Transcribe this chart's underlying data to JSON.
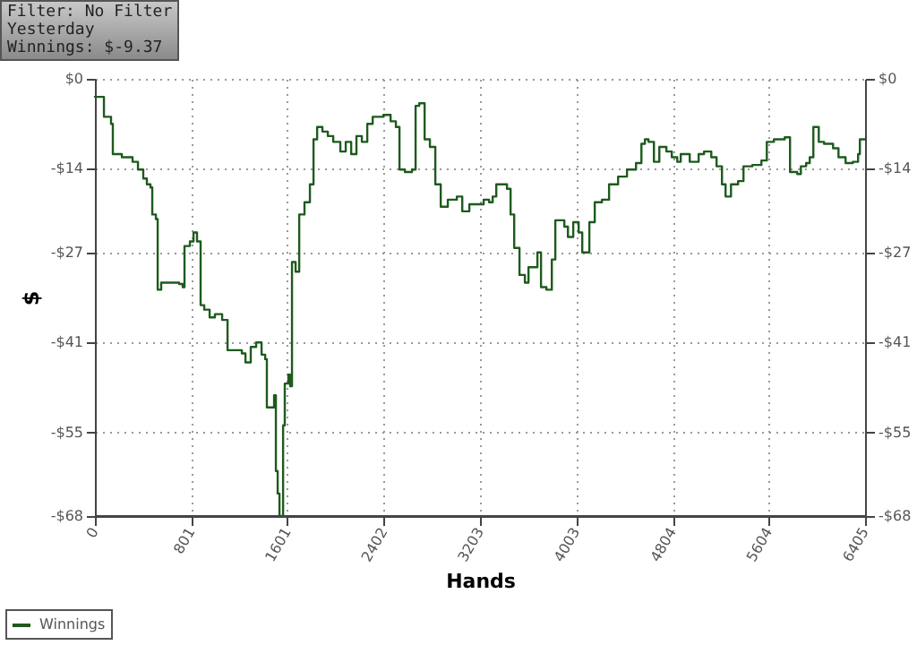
{
  "chart_data": {
    "type": "step",
    "xlabel": "Hands",
    "ylabel": "$",
    "annotations": [
      "Filter: No Filter",
      "Yesterday",
      "Winnings: $-9.37"
    ],
    "x": [
      0,
      75,
      134,
      149,
      224,
      313,
      358,
      402,
      432,
      462,
      477,
      507,
      522,
      551,
      700,
      730,
      745,
      790,
      820,
      849,
      879,
      909,
      954,
      998,
      1058,
      1103,
      1222,
      1252,
      1296,
      1341,
      1386,
      1416,
      1430,
      1475,
      1490,
      1505,
      1520,
      1535,
      1565,
      1579,
      1609,
      1624,
      1639,
      1669,
      1699,
      1743,
      1788,
      1818,
      1848,
      1892,
      1937,
      1982,
      2041,
      2086,
      2131,
      2175,
      2220,
      2265,
      2310,
      2399,
      2459,
      2503,
      2533,
      2578,
      2637,
      2667,
      2697,
      2742,
      2786,
      2831,
      2876,
      2935,
      3010,
      3055,
      3114,
      3233,
      3278,
      3308,
      3338,
      3427,
      3457,
      3487,
      3531,
      3576,
      3606,
      3680,
      3710,
      3755,
      3800,
      3829,
      3904,
      3934,
      3978,
      4023,
      4053,
      4083,
      4112,
      4157,
      4217,
      4276,
      4351,
      4425,
      4500,
      4545,
      4574,
      4604,
      4649,
      4694,
      4753,
      4798,
      4843,
      4872,
      4947,
      5021,
      5066,
      5126,
      5170,
      5215,
      5245,
      5290,
      5349,
      5394,
      5468,
      5543,
      5588,
      5647,
      5737,
      5781,
      5841,
      5871,
      5915,
      5945,
      5975,
      6020,
      6064,
      6139,
      6184,
      6243,
      6303,
      6347,
      6362,
      6405
    ],
    "series": [
      {
        "name": "Winnings",
        "color": "#1e5a1e",
        "values": [
          -2.8,
          -5.9,
          -7.0,
          -11.7,
          -12.2,
          -12.9,
          -14.1,
          -15.5,
          -16.4,
          -16.9,
          -21.1,
          -21.8,
          -32.8,
          -31.7,
          -31.9,
          -32.4,
          -26.0,
          -25.3,
          -23.9,
          -25.3,
          -35.2,
          -35.9,
          -37.1,
          -36.6,
          -37.5,
          -42.2,
          -42.7,
          -44.1,
          -41.7,
          -41.0,
          -42.9,
          -43.6,
          -51.1,
          -51.1,
          -49.2,
          -61.0,
          -64.5,
          -68.0,
          -53.9,
          -47.4,
          -46.0,
          -47.8,
          -28.5,
          -30.0,
          -21.1,
          -19.2,
          -16.4,
          -9.4,
          -7.5,
          -8.2,
          -8.9,
          -9.8,
          -11.3,
          -9.8,
          -11.7,
          -8.9,
          -9.8,
          -7.0,
          -5.9,
          -5.6,
          -6.6,
          -7.5,
          -14.1,
          -14.5,
          -14.1,
          -4.2,
          -3.8,
          -9.4,
          -10.6,
          -16.4,
          -19.9,
          -18.8,
          -18.3,
          -20.6,
          -19.5,
          -18.8,
          -19.2,
          -18.3,
          -16.4,
          -17.1,
          -21.1,
          -26.3,
          -30.5,
          -31.7,
          -29.3,
          -27.0,
          -32.4,
          -32.8,
          -28.1,
          -22.0,
          -23.0,
          -24.6,
          -22.3,
          -23.9,
          -27.0,
          -27.0,
          -22.3,
          -19.2,
          -18.8,
          -16.4,
          -15.2,
          -14.1,
          -13.1,
          -10.1,
          -9.4,
          -9.8,
          -12.9,
          -10.6,
          -11.3,
          -12.2,
          -12.9,
          -11.7,
          -12.9,
          -11.7,
          -11.3,
          -12.2,
          -13.6,
          -16.4,
          -18.3,
          -16.4,
          -15.9,
          -13.6,
          -13.4,
          -12.7,
          -9.8,
          -9.4,
          -9.1,
          -14.5,
          -14.8,
          -13.6,
          -13.1,
          -12.2,
          -7.5,
          -9.8,
          -10.1,
          -10.8,
          -12.2,
          -13.1,
          -12.9,
          -11.7,
          -9.4,
          -9.4
        ]
      }
    ],
    "xlim": [
      0,
      6405
    ],
    "xticks": [
      0,
      801,
      1601,
      2402,
      3203,
      4003,
      4804,
      5604,
      6405
    ],
    "ylim": [
      -68,
      0
    ],
    "yticks": [
      {
        "value": 0,
        "label": "$0"
      },
      {
        "value": -14,
        "label": "-$14"
      },
      {
        "value": -27,
        "label": "-$27"
      },
      {
        "value": -41,
        "label": "-$41"
      },
      {
        "value": -55,
        "label": "-$55"
      },
      {
        "value": -68,
        "label": "-$68"
      }
    ],
    "y2lim": [
      -68,
      0
    ],
    "y2ticks": [
      {
        "value": 0,
        "label": "$0"
      },
      {
        "value": -14,
        "label": "-$14"
      },
      {
        "value": -27,
        "label": "-$27"
      },
      {
        "value": -41,
        "label": "-$41"
      },
      {
        "value": -55,
        "label": "-$55"
      },
      {
        "value": -68,
        "label": "-$68"
      }
    ],
    "grid": true,
    "legend": "bottom left",
    "line_style": "solid"
  }
}
